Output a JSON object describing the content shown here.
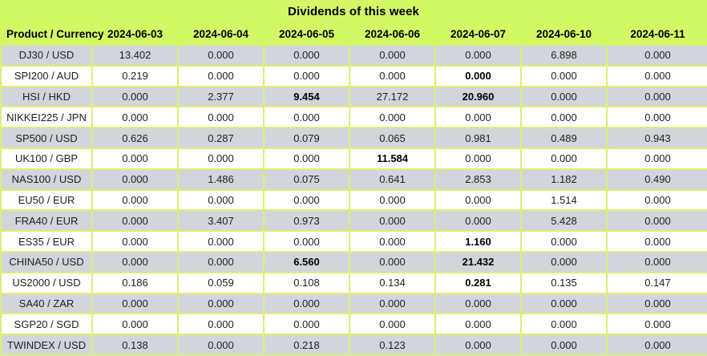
{
  "title": "Dividends of this week",
  "colors": {
    "header_bg": "#D3F866",
    "grid_border": "#D9F175",
    "row_alt_bg": "#D3D5DC",
    "row_bg": "#FFFFFF",
    "text": "#000000"
  },
  "chart_data": {
    "type": "table",
    "title": "Dividends of this week",
    "columns": [
      "Product / Currency",
      "2024-06-03",
      "2024-06-04",
      "2024-06-05",
      "2024-06-06",
      "2024-06-07",
      "2024-06-10",
      "2024-06-11"
    ],
    "rows": [
      {
        "product": "DJ30 / USD",
        "values": [
          "13.402",
          "0.000",
          "0.000",
          "0.000",
          "0.000",
          "6.898",
          "0.000"
        ],
        "bold": []
      },
      {
        "product": "SPI200 / AUD",
        "values": [
          "0.219",
          "0.000",
          "0.000",
          "0.000",
          "0.000",
          "0.000",
          "0.000"
        ],
        "bold": [
          4
        ]
      },
      {
        "product": "HSI / HKD",
        "values": [
          "0.000",
          "2.377",
          "9.454",
          "27.172",
          "20.960",
          "0.000",
          "0.000"
        ],
        "bold": [
          2,
          4
        ]
      },
      {
        "product": "NIKKEI225 / JPN",
        "values": [
          "0.000",
          "0.000",
          "0.000",
          "0.000",
          "0.000",
          "0.000",
          "0.000"
        ],
        "bold": []
      },
      {
        "product": "SP500 / USD",
        "values": [
          "0.626",
          "0.287",
          "0.079",
          "0.065",
          "0.981",
          "0.489",
          "0.943"
        ],
        "bold": []
      },
      {
        "product": "UK100 / GBP",
        "values": [
          "0.000",
          "0.000",
          "0.000",
          "11.584",
          "0.000",
          "0.000",
          "0.000"
        ],
        "bold": [
          3
        ]
      },
      {
        "product": "NAS100 / USD",
        "values": [
          "0.000",
          "1.486",
          "0.075",
          "0.641",
          "2.853",
          "1.182",
          "0.490"
        ],
        "bold": []
      },
      {
        "product": "EU50 / EUR",
        "values": [
          "0.000",
          "0.000",
          "0.000",
          "0.000",
          "0.000",
          "1.514",
          "0.000"
        ],
        "bold": []
      },
      {
        "product": "FRA40 / EUR",
        "values": [
          "0.000",
          "3.407",
          "0.973",
          "0.000",
          "0.000",
          "5.428",
          "0.000"
        ],
        "bold": []
      },
      {
        "product": "ES35 / EUR",
        "values": [
          "0.000",
          "0.000",
          "0.000",
          "0.000",
          "1.160",
          "0.000",
          "0.000"
        ],
        "bold": [
          4
        ]
      },
      {
        "product": "CHINA50 / USD",
        "values": [
          "0.000",
          "0.000",
          "6.560",
          "0.000",
          "21.432",
          "0.000",
          "0.000"
        ],
        "bold": [
          2,
          4
        ]
      },
      {
        "product": "US2000 / USD",
        "values": [
          "0.186",
          "0.059",
          "0.108",
          "0.134",
          "0.281",
          "0.135",
          "0.147"
        ],
        "bold": [
          4
        ]
      },
      {
        "product": "SA40 / ZAR",
        "values": [
          "0.000",
          "0.000",
          "0.000",
          "0.000",
          "0.000",
          "0.000",
          "0.000"
        ],
        "bold": []
      },
      {
        "product": "SGP20 / SGD",
        "values": [
          "0.000",
          "0.000",
          "0.000",
          "0.000",
          "0.000",
          "0.000",
          "0.000"
        ],
        "bold": []
      },
      {
        "product": "TWINDEX / USD",
        "values": [
          "0.138",
          "0.000",
          "0.218",
          "0.123",
          "0.000",
          "0.000",
          "0.000"
        ],
        "bold": []
      }
    ]
  }
}
